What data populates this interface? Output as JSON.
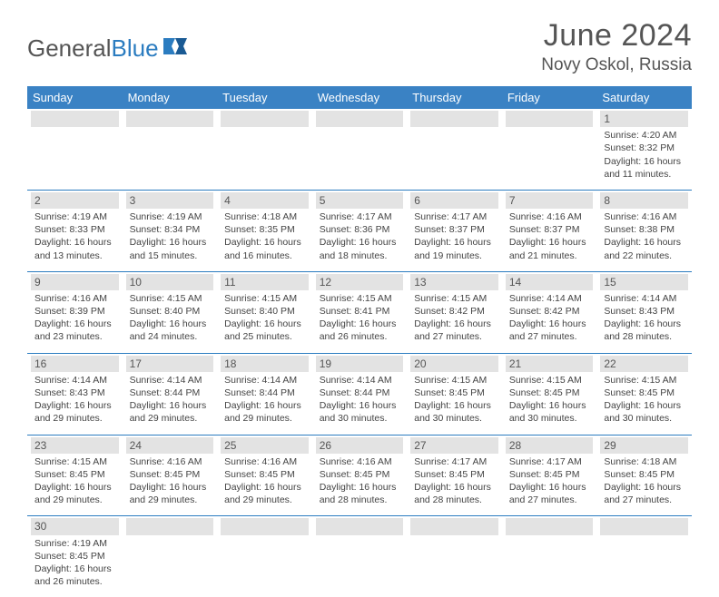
{
  "logo": {
    "text1": "General",
    "text2": "Blue"
  },
  "title": "June 2024",
  "subtitle": "Novy Oskol, Russia",
  "colors": {
    "header_bg": "#3a82c4",
    "header_text": "#ffffff",
    "border": "#2b7cc0",
    "daynum_bg": "#e3e3e3",
    "text": "#444444"
  },
  "day_headers": [
    "Sunday",
    "Monday",
    "Tuesday",
    "Wednesday",
    "Thursday",
    "Friday",
    "Saturday"
  ],
  "weeks": [
    [
      null,
      null,
      null,
      null,
      null,
      null,
      {
        "n": "1",
        "sr": "4:20 AM",
        "ss": "8:32 PM",
        "dl": "16 hours and 11 minutes."
      }
    ],
    [
      {
        "n": "2",
        "sr": "4:19 AM",
        "ss": "8:33 PM",
        "dl": "16 hours and 13 minutes."
      },
      {
        "n": "3",
        "sr": "4:19 AM",
        "ss": "8:34 PM",
        "dl": "16 hours and 15 minutes."
      },
      {
        "n": "4",
        "sr": "4:18 AM",
        "ss": "8:35 PM",
        "dl": "16 hours and 16 minutes."
      },
      {
        "n": "5",
        "sr": "4:17 AM",
        "ss": "8:36 PM",
        "dl": "16 hours and 18 minutes."
      },
      {
        "n": "6",
        "sr": "4:17 AM",
        "ss": "8:37 PM",
        "dl": "16 hours and 19 minutes."
      },
      {
        "n": "7",
        "sr": "4:16 AM",
        "ss": "8:37 PM",
        "dl": "16 hours and 21 minutes."
      },
      {
        "n": "8",
        "sr": "4:16 AM",
        "ss": "8:38 PM",
        "dl": "16 hours and 22 minutes."
      }
    ],
    [
      {
        "n": "9",
        "sr": "4:16 AM",
        "ss": "8:39 PM",
        "dl": "16 hours and 23 minutes."
      },
      {
        "n": "10",
        "sr": "4:15 AM",
        "ss": "8:40 PM",
        "dl": "16 hours and 24 minutes."
      },
      {
        "n": "11",
        "sr": "4:15 AM",
        "ss": "8:40 PM",
        "dl": "16 hours and 25 minutes."
      },
      {
        "n": "12",
        "sr": "4:15 AM",
        "ss": "8:41 PM",
        "dl": "16 hours and 26 minutes."
      },
      {
        "n": "13",
        "sr": "4:15 AM",
        "ss": "8:42 PM",
        "dl": "16 hours and 27 minutes."
      },
      {
        "n": "14",
        "sr": "4:14 AM",
        "ss": "8:42 PM",
        "dl": "16 hours and 27 minutes."
      },
      {
        "n": "15",
        "sr": "4:14 AM",
        "ss": "8:43 PM",
        "dl": "16 hours and 28 minutes."
      }
    ],
    [
      {
        "n": "16",
        "sr": "4:14 AM",
        "ss": "8:43 PM",
        "dl": "16 hours and 29 minutes."
      },
      {
        "n": "17",
        "sr": "4:14 AM",
        "ss": "8:44 PM",
        "dl": "16 hours and 29 minutes."
      },
      {
        "n": "18",
        "sr": "4:14 AM",
        "ss": "8:44 PM",
        "dl": "16 hours and 29 minutes."
      },
      {
        "n": "19",
        "sr": "4:14 AM",
        "ss": "8:44 PM",
        "dl": "16 hours and 30 minutes."
      },
      {
        "n": "20",
        "sr": "4:15 AM",
        "ss": "8:45 PM",
        "dl": "16 hours and 30 minutes."
      },
      {
        "n": "21",
        "sr": "4:15 AM",
        "ss": "8:45 PM",
        "dl": "16 hours and 30 minutes."
      },
      {
        "n": "22",
        "sr": "4:15 AM",
        "ss": "8:45 PM",
        "dl": "16 hours and 30 minutes."
      }
    ],
    [
      {
        "n": "23",
        "sr": "4:15 AM",
        "ss": "8:45 PM",
        "dl": "16 hours and 29 minutes."
      },
      {
        "n": "24",
        "sr": "4:16 AM",
        "ss": "8:45 PM",
        "dl": "16 hours and 29 minutes."
      },
      {
        "n": "25",
        "sr": "4:16 AM",
        "ss": "8:45 PM",
        "dl": "16 hours and 29 minutes."
      },
      {
        "n": "26",
        "sr": "4:16 AM",
        "ss": "8:45 PM",
        "dl": "16 hours and 28 minutes."
      },
      {
        "n": "27",
        "sr": "4:17 AM",
        "ss": "8:45 PM",
        "dl": "16 hours and 28 minutes."
      },
      {
        "n": "28",
        "sr": "4:17 AM",
        "ss": "8:45 PM",
        "dl": "16 hours and 27 minutes."
      },
      {
        "n": "29",
        "sr": "4:18 AM",
        "ss": "8:45 PM",
        "dl": "16 hours and 27 minutes."
      }
    ],
    [
      {
        "n": "30",
        "sr": "4:19 AM",
        "ss": "8:45 PM",
        "dl": "16 hours and 26 minutes."
      },
      null,
      null,
      null,
      null,
      null,
      null
    ]
  ],
  "labels": {
    "sunrise": "Sunrise: ",
    "sunset": "Sunset: ",
    "daylight": "Daylight: "
  }
}
